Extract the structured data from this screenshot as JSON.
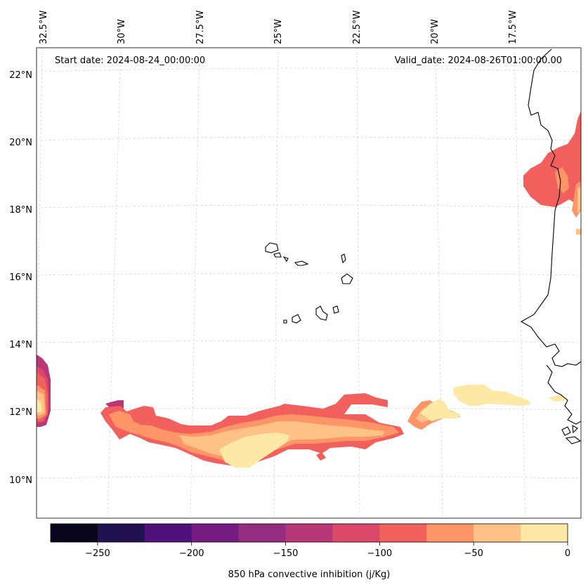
{
  "map": {
    "annotations": {
      "start_date": "Start date: 2024-08-24_00:00:00",
      "valid_date": "Valid_date: 2024-08-26T01:00:00.00"
    },
    "top_ticks": [
      "32.5°W",
      "30°W",
      "27.5°W",
      "25°W",
      "22.5°W",
      "20°W",
      "17.5°W"
    ],
    "left_ticks": [
      "22°N",
      "20°N",
      "18°N",
      "16°N",
      "14°N",
      "12°N",
      "10°N"
    ],
    "gridlines": true,
    "coastline_color": "#000000"
  },
  "colorbar": {
    "label": "850 hPa convective inhibition (j/Kg)",
    "tick_labels": [
      "−250",
      "−200",
      "−150",
      "−100",
      "−50",
      "0"
    ],
    "levels": [
      -275,
      -250,
      -225,
      -200,
      -175,
      -150,
      -125,
      -100,
      -75,
      -50,
      -25,
      0
    ],
    "colors": [
      "#07061c",
      "#221150",
      "#4f127b",
      "#751b81",
      "#942c80",
      "#b73779",
      "#dc4869",
      "#f1605d",
      "#fd9567",
      "#fec287",
      "#fde8a6"
    ]
  },
  "chart_data": {
    "type": "heatmap",
    "title": "",
    "xlabel": "",
    "ylabel": "",
    "x_ticks": [
      "32.5°W",
      "30°W",
      "27.5°W",
      "25°W",
      "22.5°W",
      "20°W",
      "17.5°W"
    ],
    "y_ticks": [
      "22°N",
      "20°N",
      "18°N",
      "16°N",
      "14°N",
      "12°N",
      "10°N"
    ],
    "colorbar_label": "850 hPa convective inhibition (j/Kg)",
    "colorbar_range": [
      -275,
      0
    ],
    "colormap": "magma",
    "regions": [
      {
        "area": "west edge near 12–13.5°N, 33°W",
        "min_value": -175,
        "max_value": 0
      },
      {
        "area": "band near 10.5–12°N, 31°W–21°W",
        "min_value": -125,
        "max_value": 0
      },
      {
        "area": "band near 11.5–12.5°N, 21°W–17.5°W",
        "min_value": -75,
        "max_value": 0
      },
      {
        "area": "near 18–20.5°N, 17°W–16°W",
        "min_value": -125,
        "max_value": -25
      }
    ]
  }
}
